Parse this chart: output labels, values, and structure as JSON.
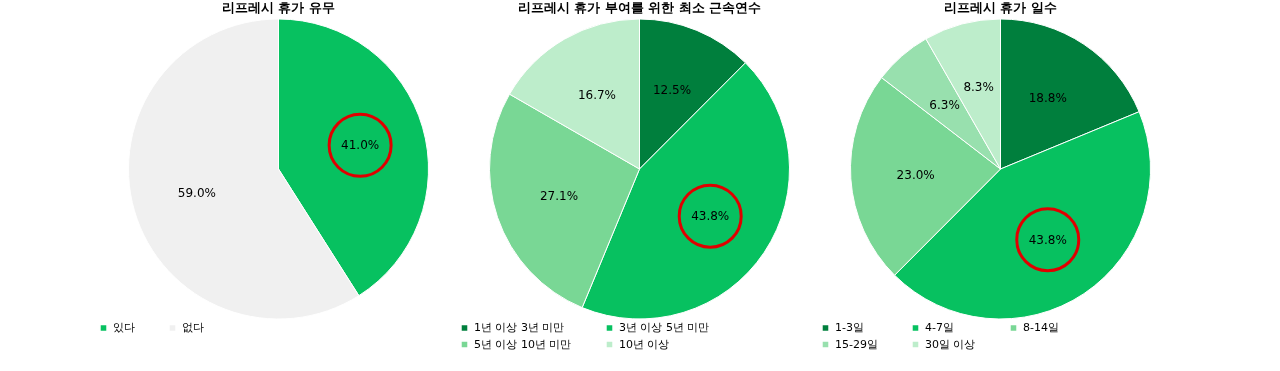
{
  "chart_data": [
    {
      "type": "pie",
      "title": "리프레시 휴가 유무",
      "categories": [
        "있다",
        "없다"
      ],
      "values": [
        41,
        59
      ],
      "value_labels": [
        "41.0%",
        "59.0%"
      ],
      "colors": [
        "#07c160",
        "#f0f0f0"
      ],
      "legend": "bottom"
    },
    {
      "type": "pie",
      "title": "리프레시 휴가 부여를 위한 최소 근속연수",
      "categories": [
        "1년 이상 3년 미만",
        "3년 이상 5년 미만",
        "5년 이상 10년 미만",
        "10년 이상"
      ],
      "values": [
        12.5,
        43.8,
        27.1,
        16.7
      ],
      "value_labels": [
        "12.5%",
        "43.8%",
        "27.1%",
        "16.7%"
      ],
      "colors": [
        "#007f3d",
        "#07c160",
        "#79d795",
        "#bdedcb"
      ],
      "legend": "bottom"
    },
    {
      "type": "pie",
      "title": "리프레시 휴가 일수",
      "categories": [
        "1-3일",
        "4-7일",
        "8-14일",
        "15-29일",
        "30일 이상"
      ],
      "values": [
        18.8,
        43.8,
        23.0,
        6.3,
        8.3
      ],
      "value_labels": [
        "18.8%",
        "43.8%",
        "23.0%",
        "6.3%",
        "8.3%"
      ],
      "colors": [
        "#007f3d",
        "#07c160",
        "#79d795",
        "#98e0ae",
        "#bdedcb"
      ],
      "legend": "bottom"
    }
  ]
}
